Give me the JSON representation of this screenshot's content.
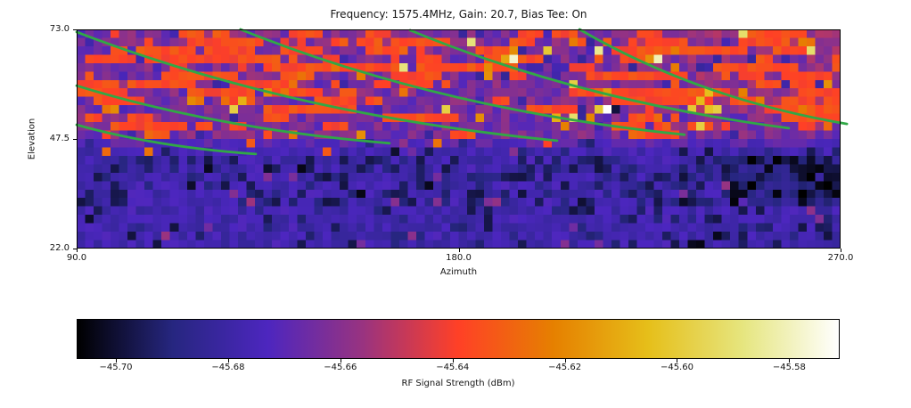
{
  "figure": {
    "title": "Frequency: 1575.4MHz, Gain: 20.7, Bias Tee: On",
    "background": "#ffffff",
    "text_color": "#141414"
  },
  "chart_data": {
    "type": "heatmap",
    "title": "Frequency: 1575.4MHz, Gain: 20.7, Bias Tee: On",
    "xlabel": "Azimuth",
    "ylabel": "Elevation",
    "x_range": [
      90,
      270
    ],
    "y_range": [
      22,
      73
    ],
    "x_ticks": {
      "values": [
        90,
        180,
        270
      ],
      "labels": [
        "90.0",
        "180.0",
        "270.0"
      ]
    },
    "y_ticks": {
      "values": [
        73,
        47.5,
        22
      ],
      "labels": [
        "73.0",
        "47.5",
        "22.0"
      ]
    },
    "grid_shape": {
      "cols": 90,
      "rows": 26
    },
    "grid_on": false,
    "colorbar": {
      "label": "RF Signal Strength (dBm)",
      "orientation": "horizontal",
      "tick_values": [
        -45.7,
        -45.68,
        -45.66,
        -45.64,
        -45.62,
        -45.6,
        -45.58
      ],
      "tick_labels": [
        "−45.70",
        "−45.68",
        "−45.66",
        "−45.64",
        "−45.62",
        "−45.60",
        "−45.58"
      ],
      "value_range": [
        -45.707,
        -45.571
      ],
      "colormap": "CMRmap",
      "colormap_stops": [
        [
          0.0,
          0.0,
          0.0
        ],
        [
          0.15,
          0.15,
          0.5
        ],
        [
          0.3,
          0.15,
          0.75
        ],
        [
          0.6,
          0.2,
          0.5
        ],
        [
          1.0,
          0.25,
          0.15
        ],
        [
          0.9,
          0.5,
          0.0
        ],
        [
          0.9,
          0.75,
          0.1
        ],
        [
          0.9,
          0.9,
          0.5
        ],
        [
          1.0,
          1.0,
          1.0
        ]
      ]
    },
    "satellite_tracks": {
      "color": "#31a846",
      "width": 2.8,
      "arcs": [
        {
          "start": [
            90.0,
            72.4
          ],
          "ctrl": [
            140.8,
            53.1
          ],
          "end": [
            203.2,
            47.1
          ]
        },
        {
          "start": [
            90.0,
            59.9
          ],
          "ctrl": [
            123.2,
            49.8
          ],
          "end": [
            163.7,
            46.5
          ]
        },
        {
          "start": [
            90.0,
            50.8
          ],
          "ctrl": [
            108.9,
            45.6
          ],
          "end": [
            132.2,
            44.0
          ]
        },
        {
          "start": [
            128.6,
            73.0
          ],
          "ctrl": [
            175.7,
            54.3
          ],
          "end": [
            233.2,
            48.5
          ]
        },
        {
          "start": [
            168.6,
            72.8
          ],
          "ctrl": [
            208.7,
            56.4
          ],
          "end": [
            257.8,
            50.0
          ]
        },
        {
          "start": [
            208.5,
            73.0
          ],
          "ctrl": [
            236.8,
            56.8
          ],
          "end": [
            271.5,
            51.0
          ]
        }
      ]
    },
    "heatmap_generation": {
      "seed": 7,
      "upper_rows": 13,
      "upper_base": [
        0.26,
        0.12
      ],
      "upper_dark_prob": 0.07,
      "upper_dark_value": [
        0.17,
        0.07
      ],
      "upper_right_warm_bias": 0.03,
      "streak_value": [
        0.48,
        0.08
      ],
      "streak_persist": 0.72,
      "streak_init_scale": 0.5,
      "streak_zone_cols": [
        45,
        63
      ],
      "streak_prob_rows": [
        [
          0.42,
          0.3,
          0.5
        ],
        [
          0.5,
          0.25,
          0.55
        ],
        [
          0.55,
          0.22,
          0.5
        ],
        [
          0.58,
          0.25,
          0.52
        ],
        [
          0.45,
          0.2,
          0.5
        ],
        [
          0.42,
          0.2,
          0.48
        ],
        [
          0.3,
          0.16,
          0.45
        ],
        [
          0.34,
          0.16,
          0.48
        ],
        [
          0.24,
          0.13,
          0.4
        ],
        [
          0.2,
          0.12,
          0.3
        ],
        [
          0.28,
          0.1,
          0.24
        ],
        [
          0.16,
          0.1,
          0.2
        ],
        [
          0.12,
          0.08,
          0.12
        ]
      ],
      "spot_orange_prob": 0.02,
      "spot_orange_value": [
        0.56,
        0.1
      ],
      "spot_yellow_prob": 0.006,
      "spot_yellow_value": [
        0.72,
        0.18
      ],
      "lower_base": [
        0.17,
        0.09
      ],
      "dark_value": [
        0.06,
        0.09
      ],
      "dark_prob_rows": [
        0.06,
        0.12,
        0.38,
        0.45,
        0.42,
        0.38,
        0.45,
        0.35,
        0.28,
        0.22,
        0.25,
        0.18,
        0.15
      ],
      "dark_right_bias": [
        0.45,
        0.9
      ],
      "black_prob": 0.02,
      "black_value": [
        0.02,
        0.05
      ],
      "magenta_prob": 0.02,
      "magenta_value": [
        0.3,
        0.08
      ],
      "corner_dark": {
        "col_min": 77,
        "row_min": 15,
        "row_max": 20,
        "delta": -0.07
      },
      "transition_row": 13,
      "transition_boost": 0.05
    },
    "bright_cells": [
      [
        51,
        3,
        0.95
      ],
      [
        50,
        3,
        0.7
      ],
      [
        68,
        3,
        0.93
      ],
      [
        67,
        3,
        0.66
      ],
      [
        86,
        2,
        0.85
      ],
      [
        58,
        6,
        0.8
      ],
      [
        62,
        7,
        0.68
      ],
      [
        74,
        7,
        0.75
      ],
      [
        22,
        7,
        0.65
      ],
      [
        19,
        8,
        0.72
      ],
      [
        14,
        8,
        0.6
      ],
      [
        18,
        9,
        0.8
      ],
      [
        3,
        9,
        0.6
      ],
      [
        4,
        9,
        0.65
      ],
      [
        43,
        9,
        0.8
      ],
      [
        62,
        9,
        1.0
      ],
      [
        61,
        9,
        0.78
      ],
      [
        63,
        9,
        0.06
      ],
      [
        72,
        9,
        0.78
      ],
      [
        58,
        10,
        0.85
      ],
      [
        56,
        10,
        0.72
      ],
      [
        73,
        11,
        0.8
      ],
      [
        8,
        12,
        0.58
      ],
      [
        25,
        12,
        0.6
      ],
      [
        42,
        13,
        0.6
      ],
      [
        20,
        13,
        0.55
      ],
      [
        3,
        14,
        0.58
      ],
      [
        8,
        14,
        0.6
      ],
      [
        29,
        14,
        0.55
      ],
      [
        70,
        4,
        0.62
      ],
      [
        85,
        1,
        0.62
      ],
      [
        86,
        1,
        0.6
      ],
      [
        33,
        5,
        0.62
      ],
      [
        48,
        5,
        0.66
      ],
      [
        30,
        4,
        0.6
      ],
      [
        38,
        7,
        0.6
      ],
      [
        80,
        8,
        0.62
      ],
      [
        65,
        12,
        0.58
      ],
      [
        55,
        13,
        0.5
      ]
    ]
  }
}
